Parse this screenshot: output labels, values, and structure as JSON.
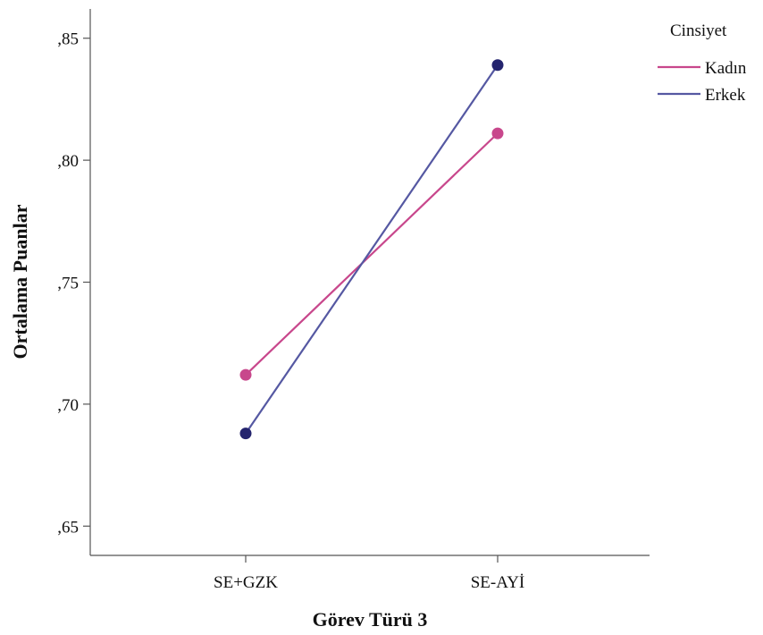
{
  "chart_data": {
    "type": "line",
    "title": "",
    "xlabel": "Görev Türü 3",
    "ylabel": "Ortalama Puanlar",
    "categories": [
      "SE+GZK",
      "SE-AYİ"
    ],
    "ylim": [
      0.638,
      0.862
    ],
    "yticks": [
      0.65,
      0.7,
      0.75,
      0.8,
      0.85
    ],
    "ytick_labels": [
      ",65",
      ",70",
      ",75",
      ",80",
      ",85"
    ],
    "grid": false,
    "legend": {
      "title": "Cinsiyet",
      "placement": "top-right"
    },
    "series": [
      {
        "name": "Kadın",
        "color": "#c8478c",
        "values": [
          0.712,
          0.811
        ]
      },
      {
        "name": "Erkek",
        "color": "#5558a2",
        "marker_color": "#24246e",
        "values": [
          0.688,
          0.839
        ]
      }
    ]
  }
}
